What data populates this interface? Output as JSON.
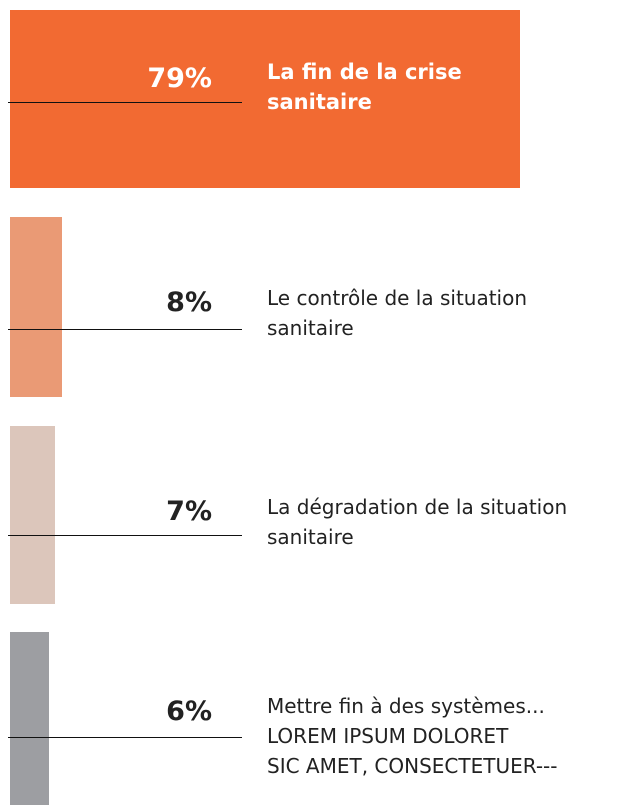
{
  "chart_data": {
    "type": "bar",
    "orientation": "horizontal",
    "categories": [
      "La fin de la crise\nsanitaire",
      "Le contrôle de la situation\nsanitaire",
      "La dégradation de la situation\nsanitaire",
      "Mettre fin à des systèmes...\nLOREM IPSUM DOLORET\nSIC AMET, CONSECTETUER---"
    ],
    "values": [
      79,
      8,
      7,
      6
    ],
    "value_labels": [
      "79%",
      "8%",
      "7%",
      "6%"
    ],
    "colors": [
      "#f26a32",
      "#ea9a75",
      "#dcc6bb",
      "#9d9ea2"
    ]
  }
}
